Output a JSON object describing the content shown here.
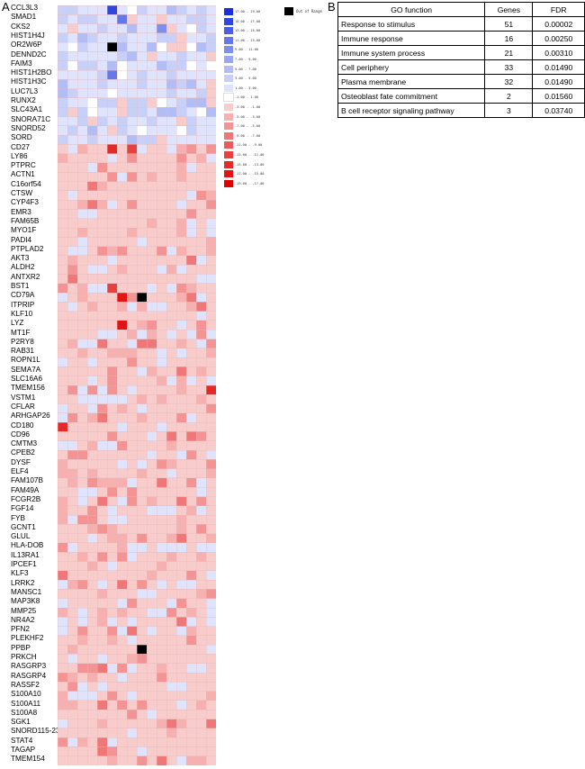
{
  "panels": {
    "a": "A",
    "b": "B"
  },
  "chart_data": {
    "type": "heatmap",
    "title": "",
    "rows": [
      "CCL3L3",
      "SMAD1",
      "CKS2",
      "HIST1H4J",
      "OR2W6P",
      "DENND2C",
      "FAIM3",
      "HIST1H2BO",
      "HIST1H3C",
      "LUC7L3",
      "RUNX2",
      "SLC43A1",
      "SNORA71C",
      "SNORD52",
      "SORD",
      "CD27",
      "LY86",
      "PTPRC",
      "ACTN1",
      "C16orf54",
      "CTSW",
      "CYP4F3",
      "EMR3",
      "FAM65B",
      "MYO1F",
      "PADI4",
      "PTPLAD2",
      "AKT3",
      "ALDH2",
      "ANTXR2",
      "BST1",
      "CD79A",
      "ITPRIP",
      "KLF10",
      "LYZ",
      "MT1F",
      "P2RY8",
      "RAB31",
      "ROPN1L",
      "SEMA7A",
      "SLC16A6",
      "TMEM156",
      "VSTM1",
      "CFLAR",
      "ARHGAP26",
      "CD180",
      "CD96",
      "CMTM3",
      "CPEB2",
      "DYSF",
      "ELF4",
      "FAM107B",
      "FAM49A",
      "FCGR2B",
      "FGF14",
      "FYB",
      "GCNT1",
      "GLUL",
      "HLA-DOB",
      "IL13RA1",
      "IPCEF1",
      "KLF3",
      "LRRK2",
      "MANSC1",
      "MAP3K8",
      "MMP25",
      "NR4A2",
      "PFN2",
      "PLEKHF2",
      "PPBP",
      "PRKCH",
      "RASGRP3",
      "RASGRP4",
      "RASSF2",
      "S100A10",
      "S100A11",
      "S100A8",
      "SGK1",
      "SNORD115-23",
      "STAT4",
      "TAGAP",
      "TMEM154"
    ],
    "n_columns": 16,
    "scale": {
      "up_bins": [
        "17.00 - 19.00",
        "15.00 - 17.00",
        "13.00 - 15.00",
        "11.00 - 13.00",
        "9.00 - 11.00",
        "7.00 - 9.00",
        "5.00 - 7.00",
        "3.00 - 5.00",
        "1.00 - 3.00"
      ],
      "up_colors": [
        "#1a2ee0",
        "#3046e3",
        "#4a5fe6",
        "#6478ea",
        "#7e90ee",
        "#98a7f2",
        "#b2bdf5",
        "#c9d0f8",
        "#dfe3fb"
      ],
      "neutral_bin": "-1.00 - 1.00",
      "neutral_color": "#ffffff",
      "down_bins": [
        "-3.00 - -1.00",
        "-5.00 - -3.00",
        "-7.00 - -5.00",
        "-9.00 - -7.00",
        "-11.00 - -9.00",
        "-13.00 - -11.00",
        "-15.00 - -13.00",
        "-17.00 - -15.00",
        "-19.00 - -17.00"
      ],
      "down_colors": [
        "#f9cccc",
        "#f6b0b0",
        "#f39393",
        "#f07777",
        "#ec5a5a",
        "#e83f3f",
        "#e52828",
        "#e21414",
        "#df0000"
      ]
    },
    "out_of_range": {
      "label": "Out of Range",
      "color": "#000000"
    },
    "n_blue_rows": 15,
    "highlights": [
      {
        "row": 4,
        "col": 5,
        "level": "oor"
      },
      {
        "row": 31,
        "col": 8,
        "level": "oor"
      },
      {
        "row": 69,
        "col": 8,
        "level": "oor"
      },
      {
        "row": 31,
        "col": 6,
        "level": 7
      },
      {
        "row": 34,
        "col": 6,
        "level": 7
      },
      {
        "row": 45,
        "col": 0,
        "level": 6
      },
      {
        "row": 41,
        "col": 15,
        "level": 6
      },
      {
        "row": 15,
        "col": 5,
        "level": 6
      },
      {
        "row": 15,
        "col": 7,
        "level": 5
      },
      {
        "row": 30,
        "col": 5,
        "level": 5
      },
      {
        "row": 0,
        "col": 5,
        "level": 7,
        "blue": true
      },
      {
        "row": 1,
        "col": 6,
        "level": 5,
        "blue": true
      },
      {
        "row": 7,
        "col": 5,
        "level": 5,
        "blue": true
      },
      {
        "row": 2,
        "col": 10,
        "level": 4,
        "blue": true
      }
    ]
  },
  "go_table": {
    "headers": {
      "function": "GO function",
      "genes": "Genes",
      "fdr": "FDR"
    },
    "rows": [
      {
        "function": "Response to stimulus",
        "genes": "51",
        "fdr": "0.00002"
      },
      {
        "function": "Immune response",
        "genes": "16",
        "fdr": "0.00250"
      },
      {
        "function": "Immune system process",
        "genes": "21",
        "fdr": "0.00310"
      },
      {
        "function": "Cell periphery",
        "genes": "33",
        "fdr": "0.01490"
      },
      {
        "function": "Plasma membrane",
        "genes": "32",
        "fdr": "0.01490"
      },
      {
        "function": "Osteoblast fate commitment",
        "genes": "2",
        "fdr": "0.01560"
      },
      {
        "function": "B cell receptor signaling pathway",
        "genes": "3",
        "fdr": "0.03740"
      }
    ]
  }
}
